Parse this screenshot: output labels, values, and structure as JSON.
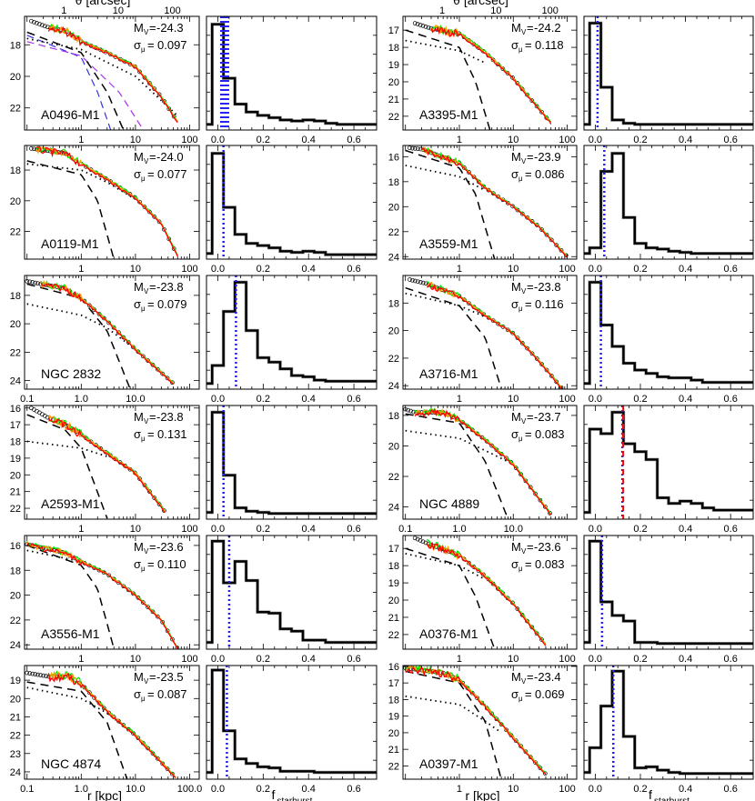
{
  "labels": {
    "top_axis": "θ [arcsec]",
    "x_profile": "r  [kpc]",
    "x_hist": "f",
    "x_hist_sub": "starburst",
    "mv": "M",
    "mv_sub": "V",
    "sigma": "σ",
    "sigma_sub": "μ",
    "arcsec_ticks": [
      "1",
      "10",
      "100"
    ]
  },
  "colors": {
    "data_lines": [
      "#00ee00",
      "#ff9900",
      "#ff0000"
    ],
    "circles": "#000000",
    "model": "#000000",
    "marker": "#2222ee",
    "marker_alt": "#ff0000",
    "histogram": "#000000"
  },
  "chart_data": [
    {
      "name": "A0496-M1",
      "Mv": "-24.3",
      "sigma": "0.097",
      "ylim": [
        16.2,
        23.4
      ],
      "yticks": [
        18,
        20,
        22
      ],
      "xticks": [
        "1",
        "10",
        "100"
      ],
      "profile": [
        [
          0.12,
          16.5
        ],
        [
          0.25,
          16.9
        ],
        [
          0.5,
          17.1
        ],
        [
          1,
          17.8
        ],
        [
          3,
          18.5
        ],
        [
          10,
          19.4
        ],
        [
          30,
          21.3
        ],
        [
          60,
          22.9
        ]
      ],
      "line_start": 0.25,
      "bulge": [
        [
          0.1,
          17.2
        ],
        [
          1,
          18.5
        ],
        [
          3,
          21
        ],
        [
          6,
          23.4
        ]
      ],
      "disk": [
        [
          0.1,
          17.6
        ],
        [
          1,
          18.3
        ],
        [
          10,
          20
        ],
        [
          60,
          22.5
        ]
      ],
      "extra_bulges": [
        {
          "color": "#3333dd",
          "points": [
            [
              0.1,
              17.4
            ],
            [
              1,
              18.8
            ],
            [
              2,
              21
            ],
            [
              3.5,
              23.4
            ]
          ]
        },
        {
          "color": "#aa33ee",
          "points": [
            [
              0.1,
              17.8
            ],
            [
              1,
              18.7
            ],
            [
              5,
              21
            ],
            [
              14,
              23.4
            ]
          ]
        }
      ],
      "hist": [
        0.05,
        0.94,
        0.46,
        0.23,
        0.16,
        0.13,
        0.11,
        0.09,
        0.08,
        0.09,
        0.08,
        0.06,
        0.05,
        0.05,
        0.05,
        0.05
      ],
      "markers": [
        0.015,
        0.025,
        0.035,
        0.045
      ]
    },
    {
      "name": "A0119-M1",
      "Mv": "-24.0",
      "sigma": "0.077",
      "ylim": [
        16.4,
        23.8
      ],
      "yticks": [
        18,
        20,
        22
      ],
      "xticks": [
        "1",
        "10",
        "100"
      ],
      "profile": [
        [
          0.12,
          16.6
        ],
        [
          0.5,
          16.9
        ],
        [
          1,
          17.6
        ],
        [
          3,
          18.6
        ],
        [
          10,
          19.8
        ],
        [
          30,
          21.5
        ],
        [
          60,
          23.6
        ]
      ],
      "line_start": 0.15,
      "bulge": [
        [
          0.1,
          17.4
        ],
        [
          1,
          18.3
        ],
        [
          2,
          20
        ],
        [
          4,
          23.8
        ]
      ],
      "disk": [
        [
          0.1,
          17.6
        ],
        [
          1,
          18.0
        ],
        [
          3,
          18.8
        ],
        [
          10,
          19.9
        ]
      ],
      "hist": [
        0.05,
        0.94,
        0.46,
        0.22,
        0.14,
        0.12,
        0.1,
        0.07,
        0.06,
        0.07,
        0.06,
        0.04,
        0.04,
        0.04,
        0.04,
        0.04
      ],
      "markers": [
        0.025
      ]
    },
    {
      "name": "NGC 2832",
      "Mv": "-23.8",
      "sigma": "0.079",
      "ylim": [
        16.6,
        24.6
      ],
      "yticks": [
        18,
        20,
        22,
        24
      ],
      "xticks": [
        "0.1",
        "1.0",
        "10.0"
      ],
      "profile": [
        [
          0.1,
          17.0
        ],
        [
          0.18,
          17.2
        ],
        [
          0.5,
          17.5
        ],
        [
          1,
          18.2
        ],
        [
          3,
          19.8
        ],
        [
          10,
          21.8
        ],
        [
          50,
          24.2
        ]
      ],
      "line_start": 0.18,
      "bulge": [
        [
          0.1,
          17.2
        ],
        [
          1,
          18.2
        ],
        [
          3,
          20.5
        ],
        [
          8,
          24.6
        ]
      ],
      "disk": [
        [
          0.1,
          18.6
        ],
        [
          1,
          19.4
        ],
        [
          3,
          20.3
        ],
        [
          10,
          21.8
        ]
      ],
      "hist": [
        0.05,
        0.21,
        0.69,
        0.95,
        0.52,
        0.28,
        0.24,
        0.18,
        0.12,
        0.11,
        0.08,
        0.07,
        0.07,
        0.07,
        0.07,
        0.07
      ],
      "markers": [
        0.08
      ]
    },
    {
      "name": "A2593-M1",
      "Mv": "-23.8",
      "sigma": "0.131",
      "ylim": [
        15.85,
        22.65
      ],
      "yticks": [
        16,
        17,
        18,
        19,
        20,
        21,
        22
      ],
      "xticks": [
        "1",
        "10",
        "100"
      ],
      "profile": [
        [
          0.12,
          16.0
        ],
        [
          0.25,
          16.6
        ],
        [
          0.5,
          17.0
        ],
        [
          1,
          17.6
        ],
        [
          3,
          18.7
        ],
        [
          10,
          19.9
        ],
        [
          35,
          22.2
        ]
      ],
      "line_start": 0.25,
      "bulge": [
        [
          0.1,
          16.4
        ],
        [
          0.5,
          17.3
        ],
        [
          1,
          18.4
        ],
        [
          3,
          22.6
        ]
      ],
      "disk": [
        [
          0.1,
          18.0
        ],
        [
          1,
          18.4
        ],
        [
          3,
          18.9
        ]
      ],
      "hist": [
        0.06,
        0.95,
        0.39,
        0.1,
        0.07,
        0.06,
        0.05,
        0.05,
        0.05,
        0.05,
        0.05,
        0.05,
        0.05,
        0.05,
        0.05,
        0.05
      ],
      "markers": [
        0.025
      ]
    },
    {
      "name": "A3556-M1",
      "Mv": "-23.6",
      "sigma": "0.110",
      "ylim": [
        15.2,
        24.35
      ],
      "yticks": [
        16,
        18,
        20,
        22,
        24
      ],
      "xticks": [
        "1",
        "10",
        "100"
      ],
      "profile": [
        [
          0.1,
          15.9
        ],
        [
          0.5,
          16.6
        ],
        [
          1,
          17.3
        ],
        [
          3,
          18.3
        ],
        [
          10,
          20.0
        ],
        [
          30,
          22.0
        ],
        [
          60,
          24.3
        ]
      ],
      "line_start": 0.1,
      "bulge": [
        [
          0.1,
          16.0
        ],
        [
          1,
          17.6
        ],
        [
          2,
          19.5
        ],
        [
          4,
          24.3
        ]
      ],
      "disk": [
        [
          0.1,
          16.4
        ],
        [
          1,
          17.3
        ],
        [
          3,
          18.2
        ]
      ],
      "hist": [
        0.06,
        0.96,
        0.59,
        0.78,
        0.61,
        0.33,
        0.32,
        0.18,
        0.16,
        0.08,
        0.08,
        0.06,
        0.06,
        0.06,
        0.06,
        0.06
      ],
      "markers": [
        0.05
      ]
    },
    {
      "name": "NGC 4874",
      "Mv": "-23.5",
      "sigma": "0.087",
      "ylim": [
        18.2,
        24.4
      ],
      "yticks": [
        19,
        20,
        21,
        22,
        23,
        24
      ],
      "xticks": [
        "0.1",
        "1.0",
        "10.0",
        "100.0"
      ],
      "profile": [
        [
          0.1,
          18.6
        ],
        [
          0.25,
          18.8
        ],
        [
          0.6,
          18.8
        ],
        [
          1,
          19.2
        ],
        [
          3,
          20.7
        ],
        [
          10,
          22.0
        ],
        [
          55,
          24.3
        ]
      ],
      "line_start": 0.25,
      "bulge": [
        [
          0.1,
          19.1
        ],
        [
          1,
          19.6
        ],
        [
          3,
          21.3
        ],
        [
          7,
          24.4
        ]
      ],
      "disk": [
        [
          0.1,
          19.4
        ],
        [
          1,
          20.0
        ],
        [
          3,
          20.8
        ],
        [
          10,
          22.0
        ]
      ],
      "hist": [
        0.06,
        0.97,
        0.43,
        0.18,
        0.14,
        0.11,
        0.1,
        0.07,
        0.07,
        0.07,
        0.06,
        0.06,
        0.06,
        0.06,
        0.06,
        0.06
      ],
      "markers": [
        0.04
      ]
    },
    {
      "name": "A3395-M1",
      "Mv": "-24.2",
      "sigma": "0.118",
      "ylim": [
        16.2,
        22.8
      ],
      "yticks": [
        17,
        18,
        19,
        20,
        21,
        22
      ],
      "xticks": [
        "1",
        "10",
        "100"
      ],
      "profile": [
        [
          0.15,
          16.6
        ],
        [
          0.3,
          16.9
        ],
        [
          1,
          17.2
        ],
        [
          3,
          18.3
        ],
        [
          10,
          19.8
        ],
        [
          50,
          22.4
        ]
      ],
      "line_start": 0.3,
      "bulge": [
        [
          0.1,
          17.0
        ],
        [
          1,
          18.0
        ],
        [
          2,
          20
        ],
        [
          3.7,
          22.8
        ]
      ],
      "disk": [
        [
          0.1,
          17.6
        ],
        [
          1,
          18.2
        ],
        [
          3,
          18.9
        ]
      ],
      "hist": [
        0.05,
        0.95,
        0.38,
        0.09,
        0.06,
        0.05,
        0.05,
        0.05,
        0.05,
        0.05,
        0.05,
        0.05,
        0.05,
        0.05,
        0.05,
        0.05
      ],
      "markers": [
        0.01
      ]
    },
    {
      "name": "A3559-M1",
      "Mv": "-23.9",
      "sigma": "0.086",
      "ylim": [
        15.1,
        24.2
      ],
      "yticks": [
        16,
        18,
        20,
        22,
        24
      ],
      "xticks": [
        "1",
        "10",
        "100"
      ],
      "profile": [
        [
          0.12,
          15.3
        ],
        [
          0.2,
          15.4
        ],
        [
          1,
          16.5
        ],
        [
          3,
          18.5
        ],
        [
          10,
          20.0
        ],
        [
          30,
          21.6
        ],
        [
          100,
          24.0
        ]
      ],
      "line_start": 0.2,
      "bulge": [
        [
          0.1,
          15.5
        ],
        [
          1,
          16.9
        ],
        [
          2,
          19
        ],
        [
          4.5,
          24.2
        ]
      ],
      "disk": [
        [
          0.1,
          16.7
        ],
        [
          1,
          17.6
        ],
        [
          3,
          18.7
        ]
      ],
      "hist": [
        0.05,
        0.1,
        0.78,
        0.94,
        0.37,
        0.14,
        0.1,
        0.09,
        0.07,
        0.06,
        0.05,
        0.05,
        0.05,
        0.05,
        0.05,
        0.05
      ],
      "markers": [
        0.04
      ]
    },
    {
      "name": "A3716-M1",
      "Mv": "-23.8",
      "sigma": "0.116",
      "ylim": [
        16.0,
        24.25
      ],
      "yticks": [
        18,
        20,
        22,
        24
      ],
      "xticks": [
        "1",
        "10",
        "100"
      ],
      "profile": [
        [
          0.12,
          16.3
        ],
        [
          0.25,
          16.6
        ],
        [
          1,
          17.5
        ],
        [
          3,
          18.9
        ],
        [
          10,
          20.2
        ],
        [
          30,
          22.2
        ],
        [
          80,
          24.2
        ]
      ],
      "line_start": 0.25,
      "bulge": [
        [
          0.1,
          16.9
        ],
        [
          1,
          18.2
        ],
        [
          3,
          20.5
        ],
        [
          6,
          24.2
        ]
      ],
      "disk": [
        [
          0.1,
          17.3
        ],
        [
          1,
          18.2
        ],
        [
          3,
          19.0
        ]
      ],
      "hist": [
        0.05,
        0.95,
        0.57,
        0.38,
        0.23,
        0.17,
        0.14,
        0.11,
        0.1,
        0.1,
        0.08,
        0.06,
        0.06,
        0.06,
        0.06,
        0.06
      ],
      "markers": [
        0.025
      ]
    },
    {
      "name": "NGC 4889",
      "Mv": "-23.7",
      "sigma": "0.083",
      "ylim": [
        17.35,
        24.8
      ],
      "yticks": [
        18,
        20,
        22,
        24
      ],
      "xticks": [
        "0.1",
        "1.0",
        "10.0"
      ],
      "profile": [
        [
          0.1,
          17.6
        ],
        [
          0.15,
          17.8
        ],
        [
          0.5,
          17.8
        ],
        [
          1,
          18.3
        ],
        [
          3,
          19.6
        ],
        [
          10,
          21.2
        ],
        [
          50,
          24.5
        ]
      ],
      "line_start": 0.15,
      "bulge": [
        [
          0.1,
          17.9
        ],
        [
          1,
          18.5
        ],
        [
          3,
          21
        ],
        [
          8,
          24.8
        ]
      ],
      "disk": [
        [
          0.1,
          19.0
        ],
        [
          1,
          19.5
        ],
        [
          3,
          20.3
        ],
        [
          10,
          21.2
        ]
      ],
      "hist": [
        0.06,
        0.8,
        0.76,
        0.95,
        0.67,
        0.6,
        0.53,
        0.19,
        0.14,
        0.16,
        0.14,
        0.1,
        0.08,
        0.08,
        0.08,
        0.08
      ],
      "markers": [
        0.12
      ],
      "markers_alt": [
        0.12
      ]
    },
    {
      "name": "A0376-M1",
      "Mv": "-23.6",
      "sigma": "0.083",
      "ylim": [
        16.25,
        22.85
      ],
      "yticks": [
        17,
        18,
        19,
        20,
        21,
        22
      ],
      "xticks": [
        "1",
        "10",
        "100"
      ],
      "profile": [
        [
          0.15,
          16.4
        ],
        [
          0.25,
          16.7
        ],
        [
          1,
          17.4
        ],
        [
          3,
          18.6
        ],
        [
          10,
          20.2
        ],
        [
          40,
          22.6
        ]
      ],
      "line_start": 0.25,
      "bulge": [
        [
          0.1,
          17.0
        ],
        [
          1,
          18.0
        ],
        [
          2,
          19.8
        ],
        [
          4.5,
          22.85
        ]
      ],
      "disk": [
        [
          0.1,
          17.3
        ],
        [
          1,
          18.0
        ],
        [
          3,
          18.8
        ]
      ],
      "hist": [
        0.06,
        0.96,
        0.42,
        0.3,
        0.25,
        0.06,
        0.06,
        0.05,
        0.05,
        0.05,
        0.05,
        0.05,
        0.05,
        0.05,
        0.05,
        0.05
      ],
      "markers": [
        0.03
      ]
    },
    {
      "name": "A0397-M1",
      "Mv": "-23.4",
      "sigma": "0.069",
      "ylim": [
        15.95,
        22.8
      ],
      "yticks": [
        16,
        17,
        18,
        19,
        20,
        21,
        22
      ],
      "xticks": [
        "1",
        "10",
        "100"
      ],
      "profile": [
        [
          0.1,
          16.1
        ],
        [
          0.5,
          16.4
        ],
        [
          1,
          16.8
        ],
        [
          3,
          18.4
        ],
        [
          10,
          20.3
        ],
        [
          40,
          22.5
        ]
      ],
      "line_start": 0.1,
      "bulge": [
        [
          0.1,
          16.3
        ],
        [
          1,
          17.0
        ],
        [
          3,
          19.3
        ],
        [
          6,
          22.8
        ]
      ],
      "disk": [
        [
          0.1,
          17.8
        ],
        [
          1,
          18.3
        ],
        [
          3,
          19.3
        ],
        [
          6,
          20
        ]
      ],
      "hist": [
        0.06,
        0.28,
        0.65,
        0.96,
        0.38,
        0.1,
        0.11,
        0.08,
        0.06,
        0.05,
        0.05,
        0.05,
        0.05,
        0.05,
        0.05,
        0.05
      ],
      "markers": [
        0.08
      ]
    }
  ],
  "profile_axis": {
    "xscale": "log",
    "xlim": [
      0.09,
      150
    ],
    "yaxis": "inverted"
  },
  "hist_axis": {
    "xlim": [
      -0.05,
      0.7
    ],
    "xticks": [
      "0.0",
      "0.2",
      "0.4",
      "0.6"
    ],
    "bin_width": 0.05,
    "first_bin_center": -0.05,
    "ylim": [
      0,
      1
    ]
  }
}
